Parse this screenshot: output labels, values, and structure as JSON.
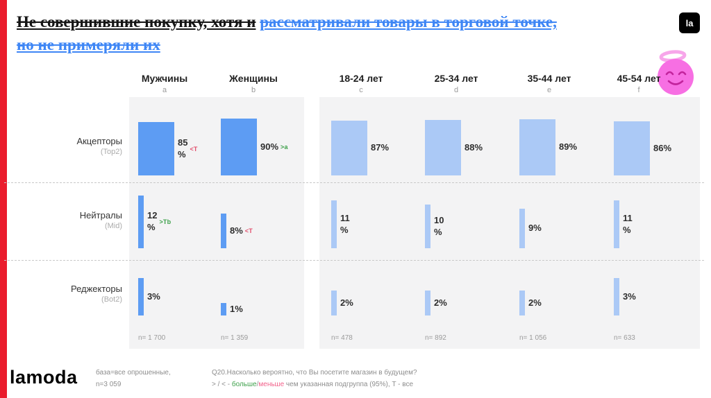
{
  "header": {
    "title_black": "Не совершившие покупку, хотя и",
    "title_blue_1": "рассматривали товары в торговой точке,",
    "title_blue_2": "но не примеряли их",
    "logo_badge": "la"
  },
  "chart_data": {
    "type": "bar",
    "title": "Не совершившие покупку, хотя и рассматривали товары в торговой точке, но не примеряли их",
    "legend_position": "none",
    "grid": "dashed-row-separators",
    "ylim": [
      0,
      100
    ],
    "row_labels": [
      {
        "label": "Акцепторы",
        "sub": "(Top2)"
      },
      {
        "label": "Нейтралы",
        "sub": "(Mid)"
      },
      {
        "label": "Реджекторы",
        "sub": "(Bot2)"
      }
    ],
    "colors": {
      "gender_bar": "#5d9cf3",
      "age_bar": "#abc9f6",
      "note_green": "#3da04a",
      "note_red": "#e2506e"
    },
    "columns": [
      {
        "label": "Мужчины",
        "letter": "a",
        "n": "n= 1 700",
        "panel": "gender",
        "values": [
          85,
          12,
          3
        ],
        "value_labels": [
          "85\n%",
          "12\n%",
          "3%"
        ],
        "notes": [
          {
            "text": "<T",
            "color": "#e2506e"
          },
          {
            "text": ">Tb",
            "color": "#3da04a"
          },
          null
        ]
      },
      {
        "label": "Женщины",
        "letter": "b",
        "n": "n= 1 359",
        "panel": "gender",
        "values": [
          90,
          8,
          1
        ],
        "value_labels": [
          "90%",
          "8%",
          "1%"
        ],
        "notes": [
          {
            "text": ">a",
            "color": "#3da04a"
          },
          {
            "text": "<T",
            "color": "#e2506e"
          },
          null
        ]
      },
      {
        "label": "18-24 лет",
        "letter": "c",
        "n": "n= 478",
        "panel": "age",
        "values": [
          87,
          11,
          2
        ],
        "value_labels": [
          "87%",
          "11\n%",
          "2%"
        ],
        "notes": [
          null,
          null,
          null
        ]
      },
      {
        "label": "25-34 лет",
        "letter": "d",
        "n": "n= 892",
        "panel": "age",
        "values": [
          88,
          10,
          2
        ],
        "value_labels": [
          "88%",
          "10\n%",
          "2%"
        ],
        "notes": [
          null,
          null,
          null
        ]
      },
      {
        "label": "35-44 лет",
        "letter": "e",
        "n": "n= 1 056",
        "panel": "age",
        "values": [
          89,
          9,
          2
        ],
        "value_labels": [
          "89%",
          "9%",
          "2%"
        ],
        "notes": [
          null,
          null,
          null
        ]
      },
      {
        "label": "45-54 лет",
        "letter": "f",
        "n": "n= 633",
        "panel": "age",
        "values": [
          86,
          11,
          3
        ],
        "value_labels": [
          "86%",
          "11\n%",
          "3%"
        ],
        "notes": [
          null,
          null,
          null
        ]
      }
    ]
  },
  "footer": {
    "brand": "lamoda",
    "base_line1": "база=все опрошенные,",
    "base_line2": "n=3 059",
    "question": "Q20.Насколько вероятно, что Вы посетите магазин в будущем?",
    "legend_prefix": "> / < - ",
    "legend_more": "больше",
    "legend_slash": "/",
    "legend_less": "меньше",
    "legend_suffix": " чем указанная подгруппа (95%), T - все"
  }
}
